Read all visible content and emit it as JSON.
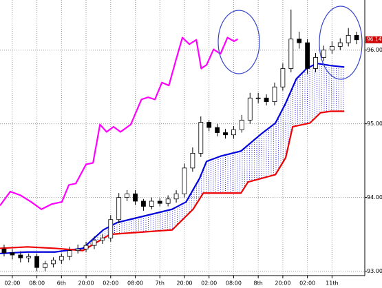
{
  "chart_data": {
    "type": "candlestick",
    "xlim": [
      0,
      89
    ],
    "ylim": [
      92.94,
      96.68
    ],
    "xticks": [
      {
        "value": 3,
        "label": "02:00"
      },
      {
        "value": 9,
        "label": "08:00"
      },
      {
        "value": 15,
        "label": "6th"
      },
      {
        "value": 21,
        "label": "20:00"
      },
      {
        "value": 27,
        "label": "02:00"
      },
      {
        "value": 33,
        "label": "08:00"
      },
      {
        "value": 39,
        "label": "7th"
      },
      {
        "value": 45,
        "label": "20:00"
      },
      {
        "value": 51,
        "label": "02:00"
      },
      {
        "value": 57,
        "label": "08:00"
      },
      {
        "value": 63,
        "label": "8th"
      },
      {
        "value": 69,
        "label": "20:00"
      },
      {
        "value": 75,
        "label": "02:00"
      },
      {
        "value": 81,
        "label": "11th"
      }
    ],
    "yticks": [
      {
        "value": 93,
        "label": "93.000"
      },
      {
        "value": 94,
        "label": "94.000"
      },
      {
        "value": 95,
        "label": "95.000"
      },
      {
        "value": 96,
        "label": "96.000"
      }
    ],
    "grid": true,
    "last_price": 96.141,
    "last_price_color": "#cc0000",
    "candles": {
      "x": [
        1,
        3,
        5,
        7,
        9,
        11,
        13,
        15,
        17,
        19,
        21,
        23,
        25,
        27,
        29,
        31,
        33,
        35,
        37,
        39,
        41,
        43,
        45,
        47,
        49,
        51,
        53,
        55,
        57,
        59,
        61,
        63,
        65,
        67,
        69,
        71,
        73,
        75,
        77,
        79,
        81,
        83,
        85,
        87
      ],
      "open": [
        93.3,
        93.25,
        93.22,
        93.18,
        93.2,
        93.05,
        93.1,
        93.15,
        93.2,
        93.28,
        93.3,
        93.35,
        93.42,
        93.45,
        93.7,
        94.0,
        94.05,
        93.95,
        93.88,
        93.95,
        93.92,
        93.98,
        94.05,
        94.4,
        94.6,
        95.02,
        94.95,
        94.88,
        94.85,
        94.92,
        95.05,
        95.35,
        95.35,
        95.3,
        95.5,
        95.75,
        96.15,
        96.1,
        95.75,
        95.9,
        96.0,
        96.05,
        96.1,
        96.2
      ],
      "high": [
        93.36,
        93.3,
        93.27,
        93.24,
        93.24,
        93.14,
        93.19,
        93.24,
        93.33,
        93.36,
        93.4,
        93.47,
        93.5,
        93.76,
        94.06,
        94.1,
        94.1,
        93.98,
        94.0,
        93.99,
        94.03,
        94.1,
        94.46,
        94.68,
        95.1,
        95.05,
        95.0,
        94.93,
        94.97,
        95.12,
        95.42,
        95.42,
        95.4,
        95.56,
        95.82,
        96.55,
        96.25,
        96.15,
        95.96,
        96.06,
        96.12,
        96.16,
        96.3,
        96.25
      ],
      "low": [
        93.2,
        93.16,
        93.12,
        93.12,
        93.0,
        93.0,
        93.05,
        93.1,
        93.15,
        93.24,
        93.26,
        93.3,
        93.37,
        93.4,
        93.65,
        93.95,
        93.9,
        93.82,
        93.84,
        93.88,
        93.88,
        93.93,
        94.0,
        94.35,
        94.55,
        94.9,
        94.83,
        94.8,
        94.8,
        94.88,
        95.0,
        95.28,
        95.25,
        95.25,
        95.45,
        95.7,
        96.02,
        95.68,
        95.7,
        95.85,
        95.95,
        96.0,
        96.05,
        96.08
      ],
      "close": [
        93.25,
        93.22,
        93.18,
        93.2,
        93.05,
        93.1,
        93.15,
        93.2,
        93.28,
        93.3,
        93.35,
        93.42,
        93.45,
        93.7,
        94.0,
        94.05,
        93.95,
        93.88,
        93.95,
        93.92,
        93.98,
        94.05,
        94.4,
        94.6,
        95.02,
        94.95,
        94.88,
        94.85,
        94.92,
        95.05,
        95.35,
        95.35,
        95.3,
        95.5,
        95.75,
        96.15,
        96.1,
        95.75,
        95.9,
        96.0,
        96.05,
        96.1,
        96.2,
        96.14
      ]
    },
    "series": [
      {
        "color": "#ff00ff",
        "x": [
          0,
          2.5,
          5,
          7.6,
          10.1,
          12.6,
          15.1,
          16.8,
          18.5,
          21,
          22.7,
          24.4,
          26,
          27.7,
          29.4,
          31.9,
          34.5,
          36.1,
          37.8,
          39.5,
          41.2,
          42.9,
          44.5,
          46.2,
          47.9,
          49.1,
          50.4,
          52.1,
          53.8,
          55.5,
          57.1,
          58
        ],
        "values": [
          93.89,
          94.08,
          94.03,
          93.94,
          93.84,
          93.91,
          93.94,
          94.17,
          94.19,
          94.45,
          94.47,
          94.99,
          94.89,
          94.96,
          94.89,
          94.99,
          95.33,
          95.36,
          95.33,
          95.56,
          95.52,
          95.86,
          96.17,
          96.08,
          96.14,
          95.75,
          95.8,
          96.01,
          95.95,
          96.17,
          96.12,
          96.15
        ]
      },
      {
        "color": "#0000dd",
        "x": [
          0,
          6.7,
          13.4,
          20.2,
          25.2,
          28.6,
          35.3,
          42,
          45.4,
          48.7,
          50.4,
          53.8,
          58.8,
          63.9,
          67.2,
          69.7,
          72.3,
          74.8,
          77.3,
          80.7,
          84
        ],
        "values": [
          93.24,
          93.26,
          93.26,
          93.31,
          93.56,
          93.66,
          93.75,
          93.84,
          93.94,
          94.26,
          94.49,
          94.56,
          94.63,
          94.87,
          95.01,
          95.28,
          95.61,
          95.75,
          95.82,
          95.79,
          95.77
        ]
      },
      {
        "color": "#ee0000",
        "x": [
          0,
          6.7,
          13.4,
          20.2,
          26.9,
          42,
          47.1,
          49.6,
          58.8,
          60.5,
          67.2,
          69.7,
          71.4,
          75.6,
          78.2,
          80.7,
          84
        ],
        "values": [
          93.31,
          93.33,
          93.31,
          93.28,
          93.5,
          93.56,
          93.84,
          94.06,
          94.06,
          94.21,
          94.31,
          94.54,
          94.96,
          95.01,
          95.15,
          95.17,
          95.17
        ]
      }
    ]
  }
}
